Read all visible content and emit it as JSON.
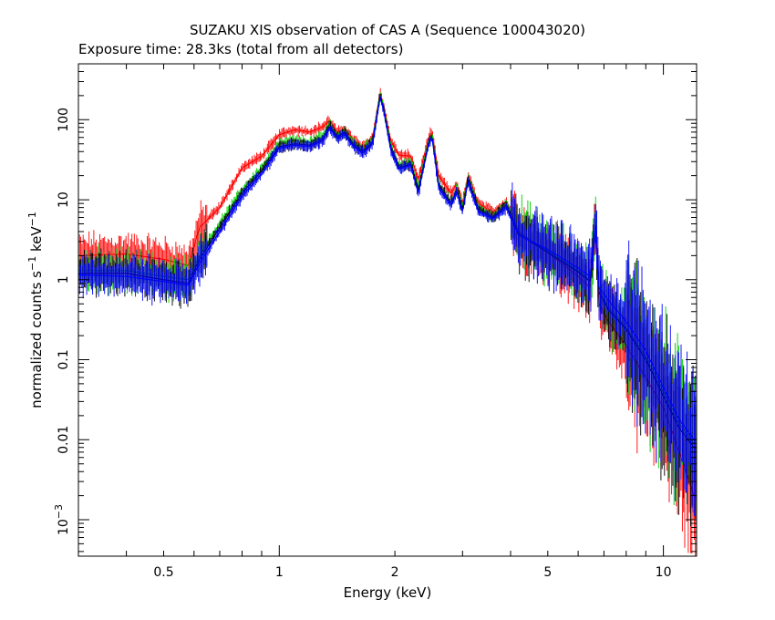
{
  "chart_data": {
    "type": "line",
    "title": "SUZAKU XIS observation of CAS A (Sequence 100043020)",
    "subtitle": "Exposure time: 28.3ks (total from all detectors)",
    "xlabel": "Energy (keV)",
    "ylabel_parts": {
      "main": "normalized counts s",
      "sup1": "−1",
      "mid": " keV",
      "sup2": "−1"
    },
    "x_scale": "log",
    "y_scale": "log",
    "xlim": [
      0.3,
      12.2
    ],
    "ylim": [
      0.00035,
      500
    ],
    "x_ticks": [
      {
        "value": 0.5,
        "label": "0.5"
      },
      {
        "value": 1,
        "label": "1"
      },
      {
        "value": 2,
        "label": "2"
      },
      {
        "value": 5,
        "label": "5"
      },
      {
        "value": 10,
        "label": "10"
      }
    ],
    "y_ticks": [
      {
        "value": 0.001,
        "label": "10",
        "sup": "−3"
      },
      {
        "value": 0.01,
        "label": "0.01"
      },
      {
        "value": 0.1,
        "label": "0.1"
      },
      {
        "value": 1,
        "label": "1"
      },
      {
        "value": 10,
        "label": "10"
      },
      {
        "value": 100,
        "label": "100"
      }
    ],
    "grid": false,
    "series": [
      {
        "color": "#ff0000",
        "x": [
          0.3,
          0.4,
          0.5,
          0.58,
          0.62,
          0.7,
          0.8,
          0.9,
          1.0,
          1.1,
          1.2,
          1.3,
          1.35,
          1.42,
          1.48,
          1.55,
          1.65,
          1.75,
          1.83,
          1.87,
          1.95,
          2.05,
          2.2,
          2.3,
          2.45,
          2.5,
          2.6,
          2.8,
          2.9,
          3.0,
          3.1,
          3.3,
          3.6,
          3.9,
          4.2,
          5.0,
          6.0,
          6.45,
          6.65,
          6.8,
          7.2,
          8.0,
          9.0,
          10.0,
          11.0,
          12.0
        ],
        "y": [
          2.0,
          2.1,
          1.8,
          1.5,
          4.5,
          8.0,
          25.0,
          35.0,
          65.0,
          75.0,
          70.0,
          82.0,
          98.0,
          68.0,
          78.0,
          58.0,
          45.0,
          60.0,
          220.0,
          150.0,
          55.0,
          36.0,
          35.0,
          18.0,
          60.0,
          70.0,
          20.0,
          12.0,
          16.0,
          9.0,
          20.0,
          9.0,
          7.0,
          9.5,
          4.0,
          2.2,
          1.1,
          0.8,
          5.0,
          0.5,
          0.3,
          0.15,
          0.06,
          0.025,
          0.007,
          0.002
        ]
      },
      {
        "color": "#00cc00",
        "x": [
          0.3,
          0.4,
          0.5,
          0.58,
          0.62,
          0.7,
          0.8,
          0.9,
          1.0,
          1.1,
          1.2,
          1.3,
          1.35,
          1.42,
          1.48,
          1.55,
          1.65,
          1.75,
          1.83,
          1.87,
          1.95,
          2.05,
          2.2,
          2.3,
          2.45,
          2.5,
          2.6,
          2.8,
          2.9,
          3.0,
          3.1,
          3.3,
          3.6,
          3.9,
          4.2,
          5.0,
          6.0,
          6.45,
          6.65,
          6.8,
          7.2,
          8.0,
          9.0,
          10.0,
          11.0,
          12.0
        ],
        "y": [
          1.3,
          1.3,
          1.1,
          1.0,
          2.0,
          5.0,
          13.0,
          25.0,
          50.0,
          55.0,
          52.0,
          62.0,
          88.0,
          62.0,
          72.0,
          53.0,
          42.0,
          55.0,
          210.0,
          140.0,
          48.0,
          26.0,
          30.0,
          14.0,
          55.0,
          65.0,
          16.0,
          9.0,
          14.0,
          8.0,
          19.0,
          8.0,
          6.0,
          9.0,
          3.8,
          2.3,
          1.3,
          1.0,
          5.5,
          0.7,
          0.45,
          0.25,
          0.11,
          0.04,
          0.016,
          0.009
        ]
      },
      {
        "color": "#000000",
        "x": [
          0.3,
          0.4,
          0.5,
          0.58,
          0.62,
          0.7,
          0.8,
          0.9,
          1.0,
          1.1,
          1.2,
          1.3,
          1.35,
          1.42,
          1.48,
          1.55,
          1.65,
          1.75,
          1.83,
          1.87,
          1.95,
          2.05,
          2.2,
          2.3,
          2.45,
          2.5,
          2.6,
          2.8,
          2.9,
          3.0,
          3.1,
          3.3,
          3.6,
          3.9,
          4.2,
          5.0,
          6.0,
          6.45,
          6.65,
          6.8,
          7.2,
          8.0,
          9.0,
          10.0,
          11.0,
          12.0
        ],
        "y": [
          1.2,
          1.2,
          1.0,
          0.9,
          1.8,
          4.5,
          12.0,
          23.0,
          46.0,
          50.0,
          48.0,
          58.0,
          82.0,
          60.0,
          70.0,
          50.0,
          40.0,
          52.0,
          200.0,
          135.0,
          45.0,
          25.0,
          28.0,
          13.0,
          52.0,
          62.0,
          15.0,
          9.0,
          13.0,
          7.5,
          18.0,
          7.5,
          6.0,
          8.5,
          3.7,
          2.2,
          1.25,
          0.95,
          5.2,
          0.7,
          0.42,
          0.24,
          0.1,
          0.035,
          0.014,
          0.008
        ]
      },
      {
        "color": "#0000ff",
        "x": [
          0.3,
          0.4,
          0.5,
          0.58,
          0.62,
          0.7,
          0.8,
          0.9,
          1.0,
          1.1,
          1.2,
          1.3,
          1.35,
          1.42,
          1.48,
          1.55,
          1.65,
          1.75,
          1.83,
          1.87,
          1.95,
          2.05,
          2.2,
          2.3,
          2.45,
          2.5,
          2.6,
          2.8,
          2.9,
          3.0,
          3.1,
          3.3,
          3.6,
          3.9,
          4.2,
          5.0,
          6.0,
          6.45,
          6.65,
          6.8,
          7.2,
          8.0,
          9.0,
          10.0,
          11.0,
          12.0
        ],
        "y": [
          1.15,
          1.1,
          0.95,
          0.85,
          1.6,
          4.0,
          11.0,
          21.0,
          44.0,
          48.0,
          46.0,
          55.0,
          78.0,
          58.0,
          66.0,
          48.0,
          38.0,
          50.0,
          190.0,
          130.0,
          42.0,
          24.0,
          27.0,
          12.0,
          50.0,
          60.0,
          14.0,
          8.5,
          12.5,
          7.0,
          17.0,
          7.0,
          5.8,
          8.0,
          3.6,
          2.4,
          1.4,
          1.1,
          5.0,
          0.8,
          0.55,
          0.3,
          0.13,
          0.045,
          0.018,
          0.01
        ]
      }
    ]
  }
}
